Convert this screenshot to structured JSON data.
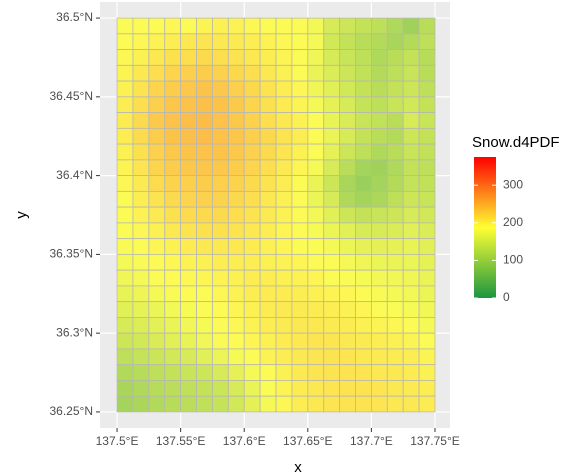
{
  "chart_data": {
    "type": "heatmap",
    "x_label": "x",
    "y_label": "y",
    "legend_title": "Snow.d4PDF",
    "x": [
      137.50625,
      137.51875,
      137.53125,
      137.54375,
      137.55625,
      137.56875,
      137.58125,
      137.59375,
      137.60625,
      137.61875,
      137.63125,
      137.64375,
      137.65625,
      137.66875,
      137.68125,
      137.69375,
      137.70625,
      137.71875,
      137.73125,
      137.74375
    ],
    "y": [
      36.495,
      36.485,
      36.475,
      36.465,
      36.455,
      36.445,
      36.435,
      36.425,
      36.415,
      36.405,
      36.395,
      36.385,
      36.375,
      36.365,
      36.355,
      36.345,
      36.335,
      36.325,
      36.315,
      36.305,
      36.295,
      36.285,
      36.275,
      36.265,
      36.255
    ],
    "values": [
      [
        185,
        188,
        190,
        192,
        190,
        195,
        198,
        196,
        192,
        190,
        188,
        185,
        178,
        150,
        140,
        130,
        125,
        110,
        95,
        120
      ],
      [
        188,
        192,
        196,
        200,
        205,
        208,
        206,
        204,
        200,
        196,
        192,
        188,
        180,
        145,
        130,
        120,
        115,
        105,
        115,
        125
      ],
      [
        192,
        198,
        205,
        212,
        215,
        218,
        214,
        210,
        206,
        200,
        195,
        190,
        175,
        150,
        135,
        125,
        110,
        120,
        130,
        118
      ],
      [
        195,
        205,
        215,
        222,
        228,
        230,
        226,
        220,
        214,
        205,
        198,
        190,
        170,
        155,
        140,
        128,
        115,
        125,
        135,
        120
      ],
      [
        198,
        210,
        222,
        230,
        235,
        238,
        234,
        228,
        220,
        210,
        200,
        192,
        175,
        160,
        145,
        130,
        120,
        130,
        140,
        125
      ],
      [
        200,
        215,
        228,
        236,
        240,
        242,
        238,
        232,
        222,
        212,
        202,
        195,
        180,
        165,
        150,
        132,
        125,
        135,
        145,
        130
      ],
      [
        202,
        218,
        232,
        240,
        244,
        245,
        240,
        234,
        225,
        215,
        205,
        198,
        185,
        168,
        152,
        135,
        128,
        120,
        150,
        135
      ],
      [
        200,
        216,
        230,
        238,
        242,
        244,
        240,
        236,
        228,
        220,
        210,
        200,
        188,
        170,
        150,
        130,
        120,
        115,
        140,
        130
      ],
      [
        198,
        212,
        226,
        234,
        238,
        240,
        238,
        234,
        226,
        218,
        208,
        198,
        185,
        165,
        140,
        125,
        110,
        120,
        135,
        128
      ],
      [
        195,
        208,
        222,
        230,
        234,
        236,
        234,
        230,
        222,
        214,
        204,
        194,
        180,
        150,
        120,
        100,
        95,
        110,
        130,
        125
      ],
      [
        192,
        204,
        216,
        224,
        228,
        230,
        228,
        224,
        218,
        210,
        200,
        190,
        170,
        140,
        105,
        90,
        100,
        115,
        132,
        128
      ],
      [
        190,
        200,
        210,
        218,
        222,
        225,
        224,
        220,
        214,
        206,
        198,
        188,
        172,
        150,
        110,
        100,
        108,
        125,
        140,
        135
      ],
      [
        188,
        196,
        204,
        212,
        216,
        218,
        218,
        215,
        210,
        204,
        196,
        188,
        178,
        160,
        140,
        130,
        135,
        140,
        150,
        145
      ],
      [
        186,
        192,
        198,
        205,
        210,
        212,
        212,
        210,
        206,
        200,
        194,
        188,
        182,
        172,
        160,
        150,
        150,
        155,
        160,
        155
      ],
      [
        184,
        188,
        194,
        198,
        202,
        205,
        206,
        205,
        202,
        198,
        194,
        190,
        186,
        180,
        172,
        165,
        162,
        165,
        168,
        160
      ],
      [
        180,
        184,
        188,
        192,
        196,
        198,
        200,
        200,
        200,
        198,
        196,
        194,
        190,
        186,
        180,
        175,
        172,
        170,
        172,
        165
      ],
      [
        175,
        180,
        185,
        188,
        192,
        194,
        196,
        198,
        200,
        200,
        198,
        196,
        194,
        190,
        186,
        182,
        178,
        176,
        175,
        170
      ],
      [
        168,
        174,
        180,
        184,
        188,
        190,
        192,
        196,
        200,
        202,
        202,
        200,
        198,
        195,
        192,
        188,
        184,
        180,
        178,
        172
      ],
      [
        160,
        166,
        172,
        178,
        182,
        186,
        190,
        194,
        198,
        202,
        204,
        204,
        202,
        200,
        197,
        194,
        190,
        186,
        182,
        176
      ],
      [
        150,
        156,
        164,
        170,
        176,
        182,
        188,
        192,
        196,
        200,
        204,
        206,
        206,
        204,
        202,
        198,
        195,
        192,
        188,
        180
      ],
      [
        140,
        146,
        152,
        160,
        168,
        176,
        184,
        190,
        194,
        198,
        202,
        206,
        208,
        208,
        206,
        204,
        200,
        198,
        195,
        188
      ],
      [
        125,
        132,
        138,
        145,
        150,
        160,
        172,
        182,
        190,
        196,
        200,
        205,
        208,
        210,
        208,
        206,
        204,
        202,
        200,
        195
      ],
      [
        112,
        118,
        125,
        130,
        135,
        140,
        150,
        165,
        180,
        190,
        198,
        204,
        208,
        210,
        210,
        208,
        206,
        205,
        202,
        198
      ],
      [
        105,
        110,
        118,
        122,
        126,
        130,
        138,
        150,
        170,
        185,
        195,
        202,
        206,
        208,
        210,
        210,
        208,
        206,
        204,
        200
      ],
      [
        100,
        106,
        112,
        118,
        122,
        126,
        132,
        145,
        162,
        180,
        192,
        200,
        205,
        208,
        210,
        210,
        208,
        206,
        205,
        202
      ]
    ],
    "xlim": [
      137.4866,
      137.7618
    ],
    "xticks": [
      {
        "value": 137.5,
        "label": "137.5°E"
      },
      {
        "value": 137.55,
        "label": "137.55°E"
      },
      {
        "value": 137.6,
        "label": "137.6°E"
      },
      {
        "value": 137.65,
        "label": "137.65°E"
      },
      {
        "value": 137.7,
        "label": "137.7°E"
      },
      {
        "value": 137.75,
        "label": "137.75°E"
      }
    ],
    "ylim": [
      36.2398,
      36.5102
    ],
    "yticks": [
      {
        "value": 36.25,
        "label": "36.25°N"
      },
      {
        "value": 36.3,
        "label": "36.3°N"
      },
      {
        "value": 36.35,
        "label": "36.35°N"
      },
      {
        "value": 36.4,
        "label": "36.4°N"
      },
      {
        "value": 36.45,
        "label": "36.45°N"
      },
      {
        "value": 36.5,
        "label": "36.5°N"
      }
    ],
    "clim": [
      0,
      375
    ],
    "cticks": [
      0,
      100,
      200,
      300
    ],
    "colorscale": [
      "#1a9641",
      "#ffff33",
      "#ff0000"
    ],
    "grid": true
  }
}
